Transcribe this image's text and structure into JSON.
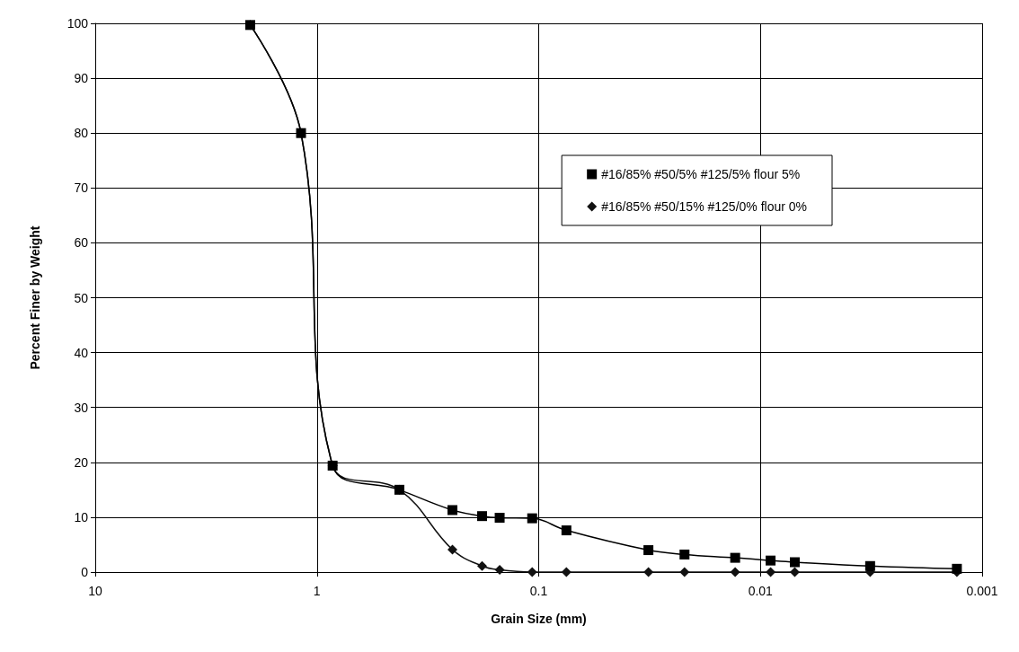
{
  "chart_data": {
    "type": "line",
    "xlabel": "Grain Size (mm)",
    "ylabel": "Percent Finer by Weight",
    "log": "x",
    "xlim": [
      10,
      0.001
    ],
    "xticks": [
      10,
      1,
      0.1,
      0.01,
      0.001
    ],
    "ylim": [
      0,
      100
    ],
    "yticks": [
      0,
      10,
      20,
      30,
      40,
      50,
      60,
      70,
      80,
      90,
      100
    ],
    "grid": true,
    "legend": "top right",
    "series": [
      {
        "name": "#16/85% #50/5% #125/5% flour 5%",
        "color": "#000000",
        "marker": "square",
        "x": [
          2.0,
          1.18,
          0.85,
          0.425,
          0.245,
          0.18,
          0.15,
          0.107,
          0.075,
          0.032,
          0.022,
          0.013,
          0.009,
          0.007,
          0.0032,
          0.0013
        ],
        "values": [
          99.7,
          80,
          19.4,
          15,
          11.3,
          10.2,
          9.9,
          9.8,
          7.6,
          4.0,
          3.2,
          2.6,
          2.1,
          1.8,
          1.1,
          0.6
        ]
      },
      {
        "name": "#16/85% #50/15% #125/0% flour 0%",
        "color": "#111111",
        "marker": "diamond",
        "x": [
          2.0,
          1.18,
          0.85,
          0.425,
          0.245,
          0.18,
          0.15,
          0.107,
          0.075,
          0.032,
          0.022,
          0.013,
          0.009,
          0.007,
          0.0032,
          0.0013
        ],
        "values": [
          99.7,
          80,
          19.4,
          15,
          4.1,
          1.1,
          0.4,
          0,
          0,
          0,
          0,
          0,
          0,
          0,
          0,
          0
        ]
      }
    ]
  }
}
